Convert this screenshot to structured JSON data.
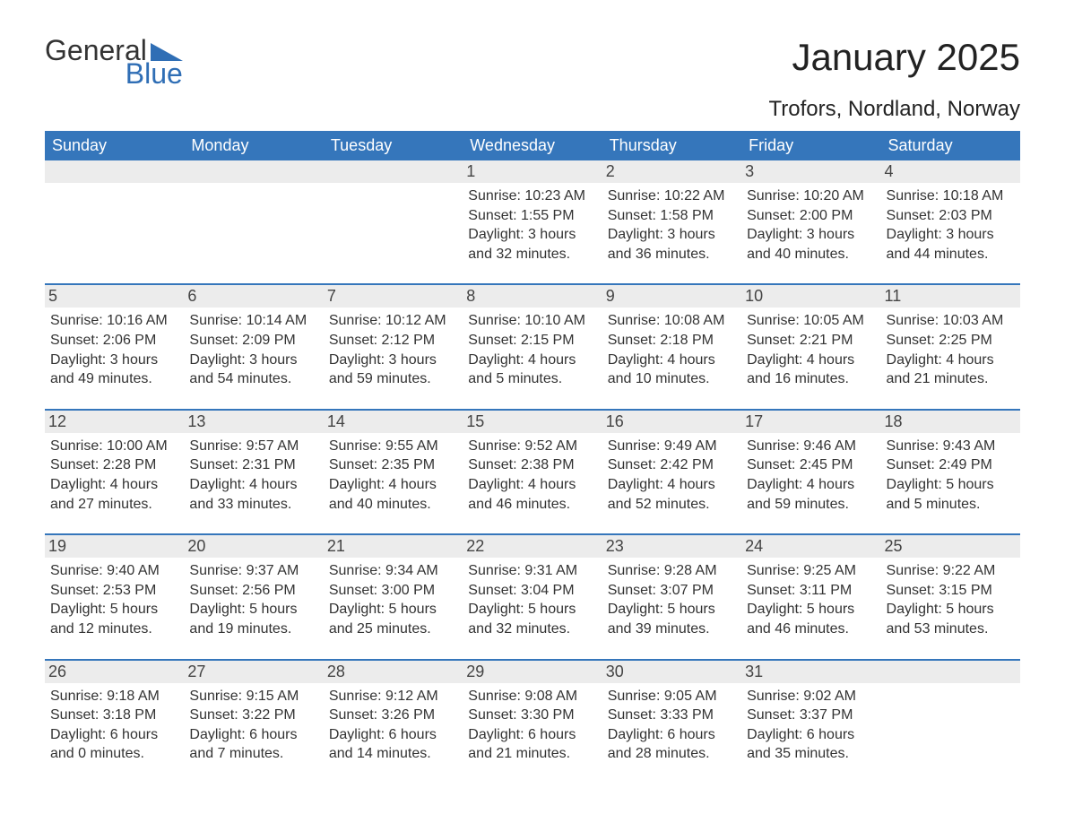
{
  "logo": {
    "general": "General",
    "blue": "Blue",
    "flag_color": "#2f6eb5",
    "text_dark": "#333333"
  },
  "title": "January 2025",
  "location": "Trofors, Nordland, Norway",
  "colors": {
    "header_bg": "#3576bb",
    "header_text": "#ffffff",
    "daynum_bg": "#ececec",
    "daynum_text": "#444444",
    "body_text": "#333333",
    "rule": "#3576bb",
    "page_bg": "#ffffff"
  },
  "typography": {
    "title_fontsize": 42,
    "location_fontsize": 24,
    "dow_fontsize": 18,
    "daynum_fontsize": 18,
    "body_fontsize": 16
  },
  "dow": [
    "Sunday",
    "Monday",
    "Tuesday",
    "Wednesday",
    "Thursday",
    "Friday",
    "Saturday"
  ],
  "weeks": [
    [
      null,
      null,
      null,
      {
        "n": "1",
        "sunrise": "Sunrise: 10:23 AM",
        "sunset": "Sunset: 1:55 PM",
        "d1": "Daylight: 3 hours",
        "d2": "and 32 minutes."
      },
      {
        "n": "2",
        "sunrise": "Sunrise: 10:22 AM",
        "sunset": "Sunset: 1:58 PM",
        "d1": "Daylight: 3 hours",
        "d2": "and 36 minutes."
      },
      {
        "n": "3",
        "sunrise": "Sunrise: 10:20 AM",
        "sunset": "Sunset: 2:00 PM",
        "d1": "Daylight: 3 hours",
        "d2": "and 40 minutes."
      },
      {
        "n": "4",
        "sunrise": "Sunrise: 10:18 AM",
        "sunset": "Sunset: 2:03 PM",
        "d1": "Daylight: 3 hours",
        "d2": "and 44 minutes."
      }
    ],
    [
      {
        "n": "5",
        "sunrise": "Sunrise: 10:16 AM",
        "sunset": "Sunset: 2:06 PM",
        "d1": "Daylight: 3 hours",
        "d2": "and 49 minutes."
      },
      {
        "n": "6",
        "sunrise": "Sunrise: 10:14 AM",
        "sunset": "Sunset: 2:09 PM",
        "d1": "Daylight: 3 hours",
        "d2": "and 54 minutes."
      },
      {
        "n": "7",
        "sunrise": "Sunrise: 10:12 AM",
        "sunset": "Sunset: 2:12 PM",
        "d1": "Daylight: 3 hours",
        "d2": "and 59 minutes."
      },
      {
        "n": "8",
        "sunrise": "Sunrise: 10:10 AM",
        "sunset": "Sunset: 2:15 PM",
        "d1": "Daylight: 4 hours",
        "d2": "and 5 minutes."
      },
      {
        "n": "9",
        "sunrise": "Sunrise: 10:08 AM",
        "sunset": "Sunset: 2:18 PM",
        "d1": "Daylight: 4 hours",
        "d2": "and 10 minutes."
      },
      {
        "n": "10",
        "sunrise": "Sunrise: 10:05 AM",
        "sunset": "Sunset: 2:21 PM",
        "d1": "Daylight: 4 hours",
        "d2": "and 16 minutes."
      },
      {
        "n": "11",
        "sunrise": "Sunrise: 10:03 AM",
        "sunset": "Sunset: 2:25 PM",
        "d1": "Daylight: 4 hours",
        "d2": "and 21 minutes."
      }
    ],
    [
      {
        "n": "12",
        "sunrise": "Sunrise: 10:00 AM",
        "sunset": "Sunset: 2:28 PM",
        "d1": "Daylight: 4 hours",
        "d2": "and 27 minutes."
      },
      {
        "n": "13",
        "sunrise": "Sunrise: 9:57 AM",
        "sunset": "Sunset: 2:31 PM",
        "d1": "Daylight: 4 hours",
        "d2": "and 33 minutes."
      },
      {
        "n": "14",
        "sunrise": "Sunrise: 9:55 AM",
        "sunset": "Sunset: 2:35 PM",
        "d1": "Daylight: 4 hours",
        "d2": "and 40 minutes."
      },
      {
        "n": "15",
        "sunrise": "Sunrise: 9:52 AM",
        "sunset": "Sunset: 2:38 PM",
        "d1": "Daylight: 4 hours",
        "d2": "and 46 minutes."
      },
      {
        "n": "16",
        "sunrise": "Sunrise: 9:49 AM",
        "sunset": "Sunset: 2:42 PM",
        "d1": "Daylight: 4 hours",
        "d2": "and 52 minutes."
      },
      {
        "n": "17",
        "sunrise": "Sunrise: 9:46 AM",
        "sunset": "Sunset: 2:45 PM",
        "d1": "Daylight: 4 hours",
        "d2": "and 59 minutes."
      },
      {
        "n": "18",
        "sunrise": "Sunrise: 9:43 AM",
        "sunset": "Sunset: 2:49 PM",
        "d1": "Daylight: 5 hours",
        "d2": "and 5 minutes."
      }
    ],
    [
      {
        "n": "19",
        "sunrise": "Sunrise: 9:40 AM",
        "sunset": "Sunset: 2:53 PM",
        "d1": "Daylight: 5 hours",
        "d2": "and 12 minutes."
      },
      {
        "n": "20",
        "sunrise": "Sunrise: 9:37 AM",
        "sunset": "Sunset: 2:56 PM",
        "d1": "Daylight: 5 hours",
        "d2": "and 19 minutes."
      },
      {
        "n": "21",
        "sunrise": "Sunrise: 9:34 AM",
        "sunset": "Sunset: 3:00 PM",
        "d1": "Daylight: 5 hours",
        "d2": "and 25 minutes."
      },
      {
        "n": "22",
        "sunrise": "Sunrise: 9:31 AM",
        "sunset": "Sunset: 3:04 PM",
        "d1": "Daylight: 5 hours",
        "d2": "and 32 minutes."
      },
      {
        "n": "23",
        "sunrise": "Sunrise: 9:28 AM",
        "sunset": "Sunset: 3:07 PM",
        "d1": "Daylight: 5 hours",
        "d2": "and 39 minutes."
      },
      {
        "n": "24",
        "sunrise": "Sunrise: 9:25 AM",
        "sunset": "Sunset: 3:11 PM",
        "d1": "Daylight: 5 hours",
        "d2": "and 46 minutes."
      },
      {
        "n": "25",
        "sunrise": "Sunrise: 9:22 AM",
        "sunset": "Sunset: 3:15 PM",
        "d1": "Daylight: 5 hours",
        "d2": "and 53 minutes."
      }
    ],
    [
      {
        "n": "26",
        "sunrise": "Sunrise: 9:18 AM",
        "sunset": "Sunset: 3:18 PM",
        "d1": "Daylight: 6 hours",
        "d2": "and 0 minutes."
      },
      {
        "n": "27",
        "sunrise": "Sunrise: 9:15 AM",
        "sunset": "Sunset: 3:22 PM",
        "d1": "Daylight: 6 hours",
        "d2": "and 7 minutes."
      },
      {
        "n": "28",
        "sunrise": "Sunrise: 9:12 AM",
        "sunset": "Sunset: 3:26 PM",
        "d1": "Daylight: 6 hours",
        "d2": "and 14 minutes."
      },
      {
        "n": "29",
        "sunrise": "Sunrise: 9:08 AM",
        "sunset": "Sunset: 3:30 PM",
        "d1": "Daylight: 6 hours",
        "d2": "and 21 minutes."
      },
      {
        "n": "30",
        "sunrise": "Sunrise: 9:05 AM",
        "sunset": "Sunset: 3:33 PM",
        "d1": "Daylight: 6 hours",
        "d2": "and 28 minutes."
      },
      {
        "n": "31",
        "sunrise": "Sunrise: 9:02 AM",
        "sunset": "Sunset: 3:37 PM",
        "d1": "Daylight: 6 hours",
        "d2": "and 35 minutes."
      },
      null
    ]
  ]
}
